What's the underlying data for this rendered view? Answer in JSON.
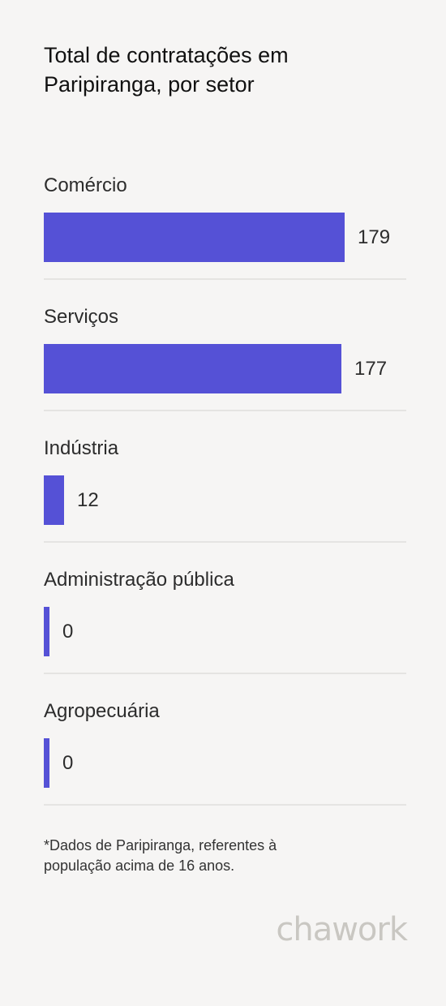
{
  "title_line1": "Total de contratações em",
  "title_line2": "Paripiranga, por setor",
  "bar_color": "#5551d6",
  "chart_data": {
    "type": "bar",
    "orientation": "horizontal",
    "title": "Total de contratações em Paripiranga, por setor",
    "categories": [
      "Comércio",
      "Serviços",
      "Indústria",
      "Administração pública",
      "Agropecuária"
    ],
    "values": [
      179,
      177,
      12,
      0,
      0
    ],
    "value_labels": [
      "179",
      "177",
      "12",
      "0",
      "0"
    ],
    "xlim": [
      0,
      179
    ],
    "grid": false,
    "legend": "none"
  },
  "footnote_line1": "*Dados de Paripiranga, referentes à",
  "footnote_line2": "população acima de 16 anos.",
  "logo_text": "chawork"
}
